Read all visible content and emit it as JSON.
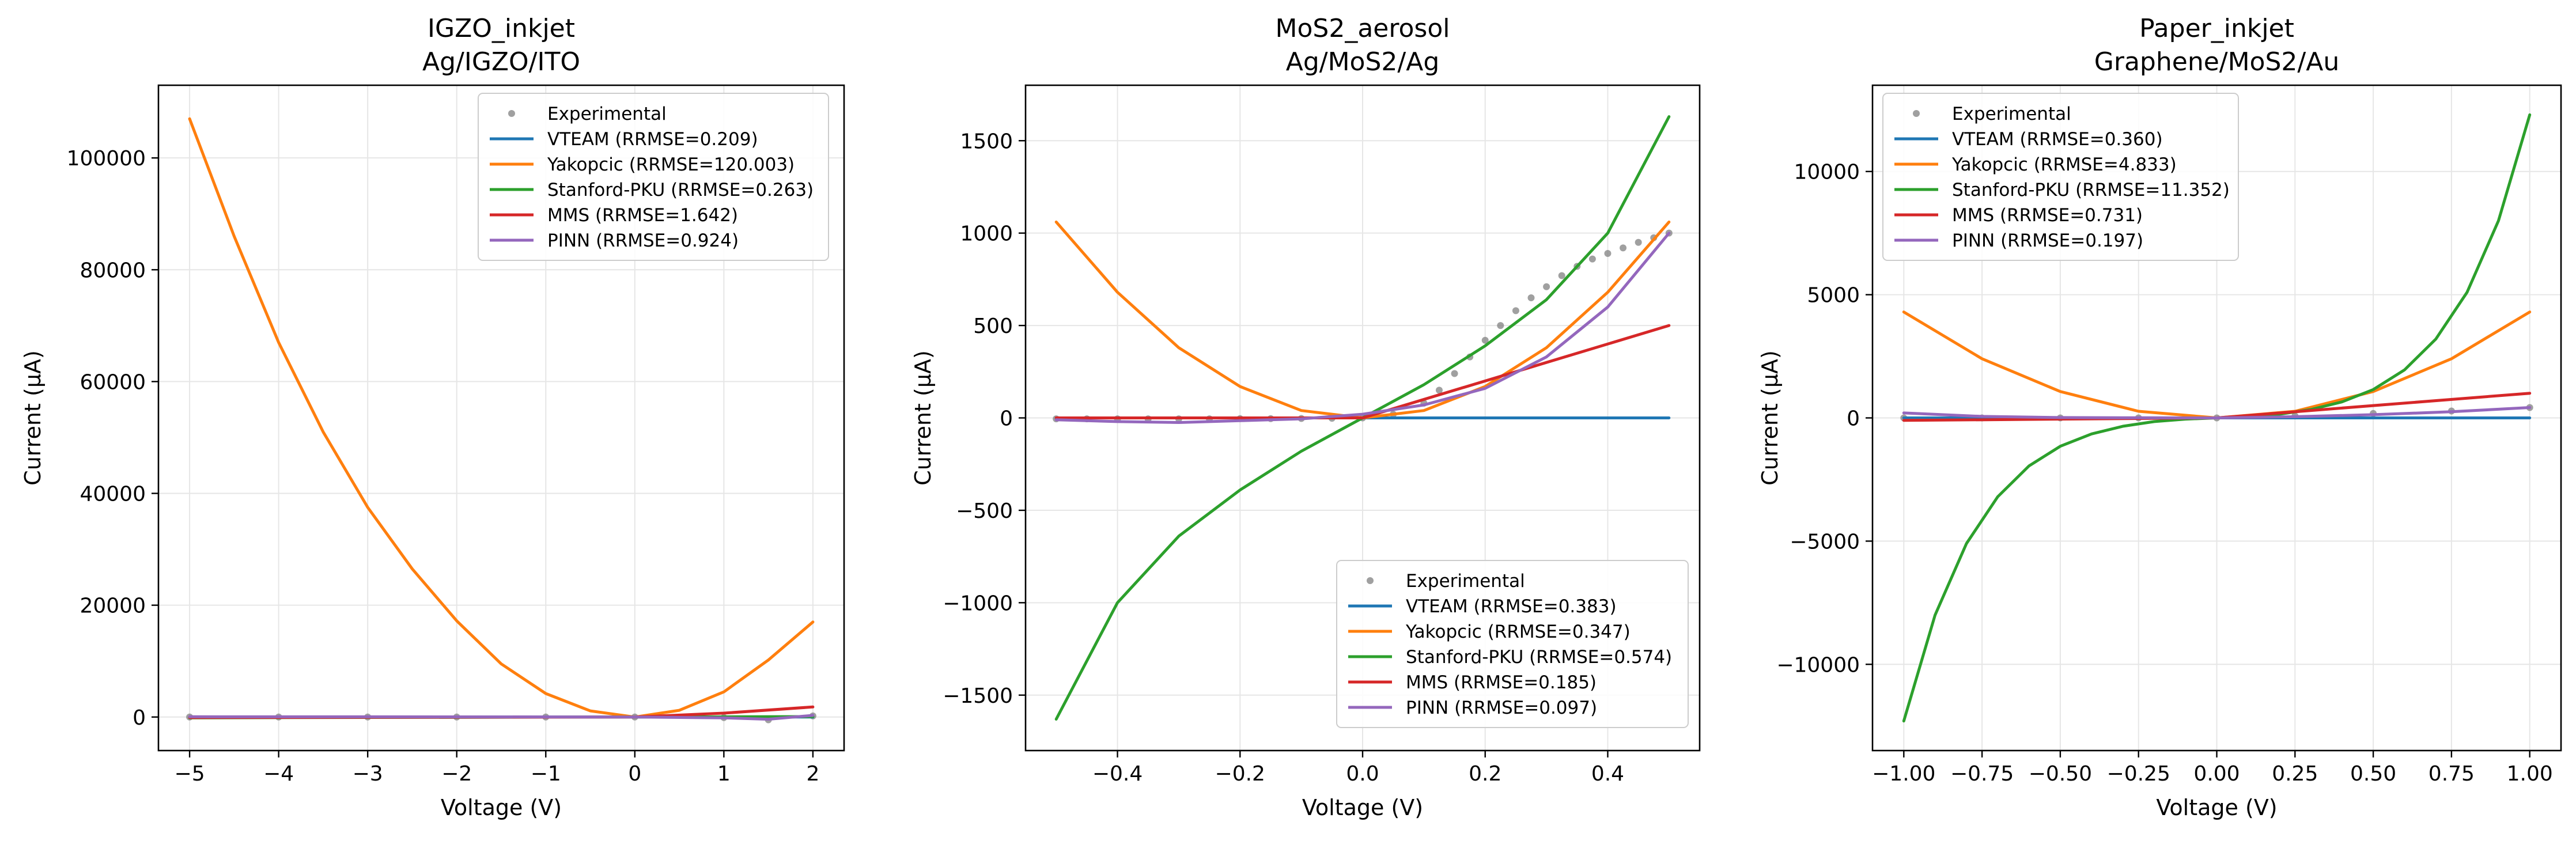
{
  "chart_data": [
    {
      "type": "line",
      "title": "IGZO_inkjet",
      "subtitle": "Ag/IGZO/ITO",
      "xlabel": "Voltage (V)",
      "ylabel": "Current (µA)",
      "xlim": [
        -5.35,
        2.35
      ],
      "ylim": [
        -6000,
        113000
      ],
      "xticks": [
        -5,
        -4,
        -3,
        -2,
        -1,
        0,
        1,
        2
      ],
      "yticks": [
        0,
        20000,
        40000,
        60000,
        80000,
        100000
      ],
      "grid": true,
      "legend": "top-right",
      "series": [
        {
          "name": "Experimental",
          "kind": "scatter",
          "color": "#808080",
          "x": [
            -5,
            -4,
            -3,
            -2,
            -1,
            0,
            1,
            1.5,
            2
          ],
          "y": [
            0,
            0,
            0,
            0,
            0,
            0,
            -100,
            -500,
            200
          ]
        },
        {
          "name": "VTEAM (RRMSE=0.209)",
          "kind": "line",
          "color": "#1f77b4",
          "x": [
            -5,
            0,
            2
          ],
          "y": [
            0,
            0,
            0
          ]
        },
        {
          "name": "Yakopcic (RRMSE=120.003)",
          "kind": "line",
          "color": "#ff7f0e",
          "x": [
            -5,
            -4.5,
            -4,
            -3.5,
            -3,
            -2.5,
            -2,
            -1.5,
            -1,
            -0.5,
            0,
            0.5,
            1,
            1.5,
            2
          ],
          "y": [
            107000,
            86000,
            67000,
            51000,
            37500,
            26500,
            17200,
            9500,
            4200,
            1100,
            0,
            1200,
            4500,
            10200,
            17000
          ]
        },
        {
          "name": "Stanford-PKU (RRMSE=0.263)",
          "kind": "line",
          "color": "#2ca02c",
          "x": [
            -5,
            -3,
            0,
            2
          ],
          "y": [
            -150,
            -80,
            0,
            80
          ]
        },
        {
          "name": "MMS (RRMSE=1.642)",
          "kind": "line",
          "color": "#d62728",
          "x": [
            -5,
            -3,
            -1,
            0,
            1,
            2
          ],
          "y": [
            -100,
            -60,
            -20,
            0,
            700,
            1800
          ]
        },
        {
          "name": "PINN (RRMSE=0.924)",
          "kind": "line",
          "color": "#9467bd",
          "x": [
            -5,
            -3,
            -1,
            0,
            1,
            1.5,
            2
          ],
          "y": [
            50,
            40,
            20,
            0,
            -150,
            -400,
            300
          ]
        }
      ]
    },
    {
      "type": "line",
      "title": "MoS2_aerosol",
      "subtitle": "Ag/MoS2/Ag",
      "xlabel": "Voltage (V)",
      "ylabel": "Current (µA)",
      "xlim": [
        -0.55,
        0.55
      ],
      "ylim": [
        -1800,
        1800
      ],
      "xticks": [
        -0.4,
        -0.2,
        0.0,
        0.2,
        0.4
      ],
      "yticks": [
        -1500,
        -1000,
        -500,
        0,
        500,
        1000,
        1500
      ],
      "grid": true,
      "legend": "bottom-right",
      "series": [
        {
          "name": "Experimental",
          "kind": "scatter",
          "color": "#808080",
          "x": [
            -0.5,
            -0.45,
            -0.4,
            -0.35,
            -0.3,
            -0.25,
            -0.2,
            -0.15,
            -0.1,
            -0.05,
            0,
            0.05,
            0.1,
            0.125,
            0.15,
            0.175,
            0.2,
            0.225,
            0.25,
            0.275,
            0.3,
            0.325,
            0.35,
            0.375,
            0.4,
            0.425,
            0.45,
            0.475,
            0.5
          ],
          "y": [
            -5,
            -5,
            -5,
            -5,
            -5,
            -5,
            -4,
            -4,
            -3,
            -2,
            0,
            20,
            80,
            150,
            240,
            330,
            420,
            500,
            580,
            650,
            710,
            770,
            820,
            860,
            890,
            920,
            950,
            975,
            1000
          ]
        },
        {
          "name": "VTEAM (RRMSE=0.383)",
          "kind": "line",
          "color": "#1f77b4",
          "x": [
            -0.5,
            0,
            0.5
          ],
          "y": [
            0,
            0,
            0
          ]
        },
        {
          "name": "Yakopcic (RRMSE=0.347)",
          "kind": "line",
          "color": "#ff7f0e",
          "x": [
            -0.5,
            -0.4,
            -0.3,
            -0.2,
            -0.1,
            0,
            0.1,
            0.2,
            0.3,
            0.4,
            0.5
          ],
          "y": [
            1060,
            680,
            380,
            170,
            40,
            0,
            40,
            170,
            380,
            680,
            1060
          ]
        },
        {
          "name": "Stanford-PKU (RRMSE=0.574)",
          "kind": "line",
          "color": "#2ca02c",
          "x": [
            -0.5,
            -0.4,
            -0.3,
            -0.2,
            -0.1,
            0,
            0.1,
            0.2,
            0.3,
            0.4,
            0.5
          ],
          "y": [
            -1630,
            -1000,
            -640,
            -390,
            -180,
            0,
            180,
            390,
            640,
            1000,
            1630
          ]
        },
        {
          "name": "MMS (RRMSE=0.185)",
          "kind": "line",
          "color": "#d62728",
          "x": [
            -0.5,
            0,
            0.5
          ],
          "y": [
            0,
            0,
            500
          ]
        },
        {
          "name": "PINN (RRMSE=0.097)",
          "kind": "line",
          "color": "#9467bd",
          "x": [
            -0.5,
            -0.4,
            -0.3,
            -0.2,
            -0.1,
            0,
            0.1,
            0.2,
            0.3,
            0.4,
            0.5
          ],
          "y": [
            -10,
            -20,
            -25,
            -15,
            -5,
            20,
            70,
            160,
            330,
            600,
            1000
          ]
        }
      ]
    },
    {
      "type": "line",
      "title": "Paper_inkjet",
      "subtitle": "Graphene/MoS2/Au",
      "xlabel": "Voltage (V)",
      "ylabel": "Current (µA)",
      "xlim": [
        -1.1,
        1.1
      ],
      "ylim": [
        -13500,
        13500
      ],
      "xticks": [
        -1.0,
        -0.75,
        -0.5,
        -0.25,
        0.0,
        0.25,
        0.5,
        0.75,
        1.0
      ],
      "yticks": [
        -10000,
        -5000,
        0,
        5000,
        10000
      ],
      "grid": true,
      "legend": "top-left",
      "series": [
        {
          "name": "Experimental",
          "kind": "scatter",
          "color": "#808080",
          "x": [
            -1,
            -0.75,
            -0.5,
            -0.25,
            0,
            0.25,
            0.5,
            0.75,
            1
          ],
          "y": [
            0,
            0,
            0,
            0,
            0,
            80,
            180,
            280,
            420
          ]
        },
        {
          "name": "VTEAM (RRMSE=0.360)",
          "kind": "line",
          "color": "#1f77b4",
          "x": [
            -1,
            0,
            1
          ],
          "y": [
            0,
            0,
            0
          ]
        },
        {
          "name": "Yakopcic (RRMSE=4.833)",
          "kind": "line",
          "color": "#ff7f0e",
          "x": [
            -1,
            -0.75,
            -0.5,
            -0.25,
            0,
            0.25,
            0.5,
            0.75,
            1
          ],
          "y": [
            4300,
            2400,
            1070,
            270,
            0,
            270,
            1070,
            2400,
            4300
          ]
        },
        {
          "name": "Stanford-PKU (RRMSE=11.352)",
          "kind": "line",
          "color": "#2ca02c",
          "x": [
            -1,
            -0.9,
            -0.8,
            -0.7,
            -0.6,
            -0.5,
            -0.4,
            -0.3,
            -0.2,
            -0.1,
            0,
            0.1,
            0.2,
            0.3,
            0.4,
            0.5,
            0.6,
            0.7,
            0.8,
            0.9,
            1
          ],
          "y": [
            -12300,
            -8000,
            -5100,
            -3200,
            -1950,
            -1150,
            -650,
            -340,
            -150,
            -50,
            0,
            50,
            150,
            340,
            650,
            1150,
            1950,
            3200,
            5100,
            8000,
            12300
          ]
        },
        {
          "name": "MMS (RRMSE=0.731)",
          "kind": "line",
          "color": "#d62728",
          "x": [
            -1,
            0,
            1
          ],
          "y": [
            -100,
            0,
            1000
          ]
        },
        {
          "name": "PINN (RRMSE=0.197)",
          "kind": "line",
          "color": "#9467bd",
          "x": [
            -1,
            -0.75,
            -0.5,
            -0.25,
            0,
            0.25,
            0.5,
            0.75,
            1
          ],
          "y": [
            200,
            60,
            15,
            5,
            0,
            50,
            130,
            250,
            420
          ]
        }
      ]
    }
  ]
}
